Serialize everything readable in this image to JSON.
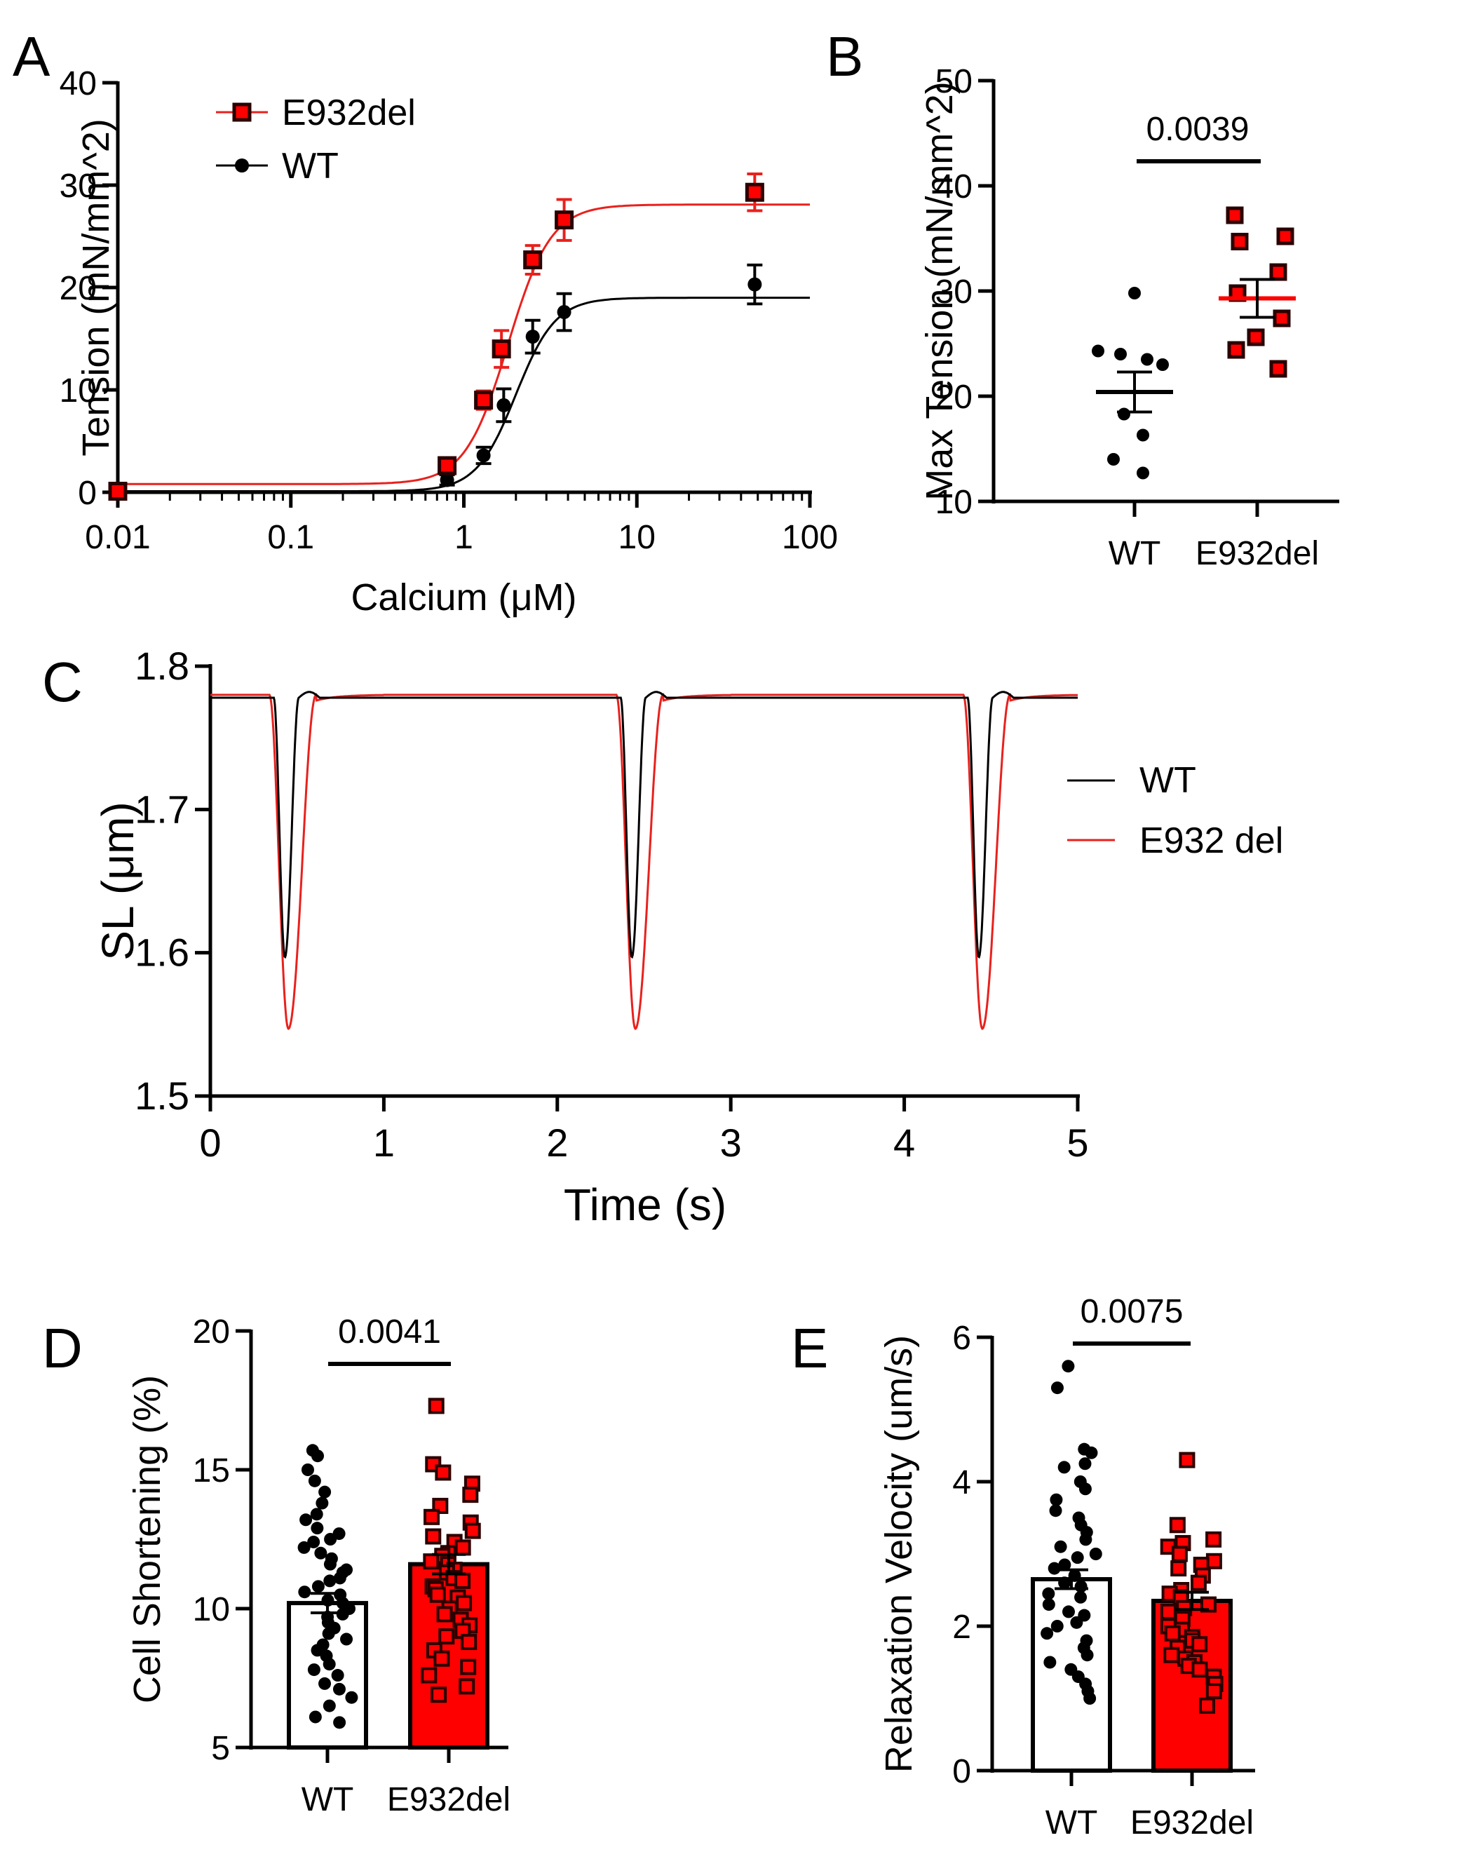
{
  "colors": {
    "wt": "#000000",
    "mut": "#e8211d",
    "mut_fill": "#ff0000"
  },
  "panels": {
    "A": {
      "letter": "A"
    },
    "B": {
      "letter": "B"
    },
    "C": {
      "letter": "C"
    },
    "D": {
      "letter": "D"
    },
    "E": {
      "letter": "E"
    }
  },
  "chart_data": [
    {
      "panel": "A",
      "type": "scatter",
      "xlabel": "Calcium (μM)",
      "ylabel": "Tension (mN/mm^2)",
      "xscale": "log",
      "xlim": [
        0.01,
        100
      ],
      "ylim": [
        0,
        40
      ],
      "xticks": [
        "0.01",
        "0.1",
        "1",
        "10",
        "100"
      ],
      "yticks": [
        "0",
        "10",
        "20",
        "30",
        "40"
      ],
      "legend": {
        "placement": "top-left",
        "entries": [
          "E932del",
          "WT"
        ]
      },
      "series": [
        {
          "name": "E932del",
          "marker": "square",
          "color": "#e8211d",
          "x": [
            0.01,
            0.8,
            1.3,
            1.65,
            2.5,
            3.8,
            48
          ],
          "y": [
            0.1,
            2.6,
            9.0,
            14.0,
            22.7,
            26.6,
            29.3
          ],
          "err": [
            0,
            0.7,
            0.9,
            1.8,
            1.4,
            2.0,
            1.8
          ],
          "fit": {
            "model": "hill",
            "bottom": 0.8,
            "top": 28.1,
            "ec50": 1.8,
            "n": 3.5
          }
        },
        {
          "name": "WT",
          "marker": "circle",
          "color": "#000000",
          "x": [
            0.01,
            0.8,
            1.3,
            1.7,
            2.5,
            3.8,
            48
          ],
          "y": [
            0.1,
            1.2,
            3.6,
            8.5,
            15.2,
            17.6,
            20.3
          ],
          "err": [
            0,
            0.5,
            0.8,
            1.6,
            1.6,
            1.8,
            1.9
          ],
          "fit": {
            "model": "hill",
            "bottom": 0.1,
            "top": 19.0,
            "ec50": 2.0,
            "n": 3.8
          }
        }
      ]
    },
    {
      "panel": "B",
      "type": "scatter",
      "ylabel": "Max Tension (mN/mm^2)",
      "categories": [
        "WT",
        "E932del"
      ],
      "ylim": [
        10,
        50
      ],
      "yticks": [
        "10",
        "20",
        "30",
        "40",
        "50"
      ],
      "annotation": "0.0039",
      "series": [
        {
          "name": "WT",
          "marker": "circle",
          "color": "#000000",
          "values": [
            29.8,
            24.3,
            24.0,
            23.5,
            23.0,
            18.3,
            16.3,
            14.0,
            12.7
          ],
          "mean": 20.4,
          "sem": 1.9
        },
        {
          "name": "E932del",
          "marker": "square",
          "color": "#e8211d",
          "values": [
            37.2,
            35.2,
            34.7,
            31.8,
            29.8,
            27.4,
            25.6,
            24.4,
            22.6
          ],
          "mean": 29.3,
          "sem": 1.8
        }
      ]
    },
    {
      "panel": "C",
      "type": "line",
      "xlabel": "Time (s)",
      "ylabel": "SL (μm)",
      "xlim": [
        0,
        5
      ],
      "ylim": [
        1.5,
        1.8
      ],
      "xticks": [
        "0",
        "1",
        "2",
        "3",
        "4",
        "5"
      ],
      "yticks": [
        "1.5",
        "1.6",
        "1.7",
        "1.8"
      ],
      "legend": {
        "placement": "right",
        "entries": [
          "WT",
          "E932 del"
        ]
      },
      "series": [
        {
          "name": "WT",
          "color": "#000000",
          "baseline": 1.778,
          "troughs": [
            {
              "t": 0.43,
              "min": 1.597
            },
            {
              "t": 2.43,
              "min": 1.597
            },
            {
              "t": 4.43,
              "min": 1.597
            }
          ]
        },
        {
          "name": "E932 del",
          "color": "#e8211d",
          "baseline": 1.78,
          "troughs": [
            {
              "t": 0.45,
              "min": 1.547
            },
            {
              "t": 2.45,
              "min": 1.547
            },
            {
              "t": 4.45,
              "min": 1.547
            }
          ]
        }
      ]
    },
    {
      "panel": "D",
      "type": "bar",
      "ylabel": "Cell Shortening (%)",
      "categories": [
        "WT",
        "E932del"
      ],
      "ylim": [
        5,
        20
      ],
      "yticks": [
        "5",
        "10",
        "15",
        "20"
      ],
      "annotation": "0.0041",
      "values": [
        10.2,
        11.6
      ],
      "sem": [
        0.35,
        0.35
      ],
      "points": {
        "WT": [
          15.7,
          15.5,
          15.0,
          14.6,
          14.2,
          13.8,
          13.4,
          13.2,
          12.9,
          12.7,
          12.5,
          12.4,
          12.2,
          12.0,
          11.8,
          11.6,
          11.4,
          11.3,
          11.1,
          11.0,
          10.8,
          10.6,
          10.5,
          10.3,
          10.2,
          10.0,
          9.8,
          9.7,
          9.5,
          9.3,
          9.1,
          8.9,
          8.7,
          8.5,
          8.3,
          8.0,
          7.8,
          7.6,
          7.3,
          7.1,
          6.8,
          6.5,
          6.1,
          5.9
        ],
        "E932del": [
          17.3,
          15.2,
          14.9,
          14.5,
          14.1,
          13.7,
          13.3,
          13.1,
          12.8,
          12.6,
          12.4,
          12.2,
          12.0,
          11.9,
          11.7,
          11.6,
          11.4,
          11.3,
          11.1,
          11.0,
          10.8,
          10.7,
          10.5,
          10.4,
          10.2,
          10.0,
          9.8,
          9.6,
          9.4,
          9.2,
          9.0,
          8.8,
          8.5,
          8.2,
          7.9,
          7.6,
          7.2,
          6.9
        ]
      }
    },
    {
      "panel": "E",
      "type": "bar",
      "ylabel": "Relaxation Velocity (um/s)",
      "categories": [
        "WT",
        "E932del"
      ],
      "ylim": [
        0,
        6
      ],
      "yticks": [
        "0",
        "2",
        "4",
        "6"
      ],
      "annotation": "0.0075",
      "values": [
        2.65,
        2.35
      ],
      "sem": [
        0.13,
        0.12
      ],
      "points": {
        "WT": [
          5.6,
          5.3,
          4.45,
          4.4,
          4.25,
          4.2,
          4.0,
          3.9,
          3.75,
          3.6,
          3.5,
          3.4,
          3.3,
          3.2,
          3.1,
          3.0,
          2.95,
          2.85,
          2.8,
          2.7,
          2.6,
          2.55,
          2.45,
          2.4,
          2.3,
          2.2,
          2.15,
          2.05,
          2.0,
          1.9,
          1.8,
          1.7,
          1.6,
          1.5,
          1.4,
          1.3,
          1.2,
          1.1,
          1.0
        ],
        "E932del": [
          4.3,
          3.4,
          3.2,
          3.15,
          3.1,
          3.0,
          2.9,
          2.85,
          2.8,
          2.7,
          2.6,
          2.5,
          2.45,
          2.4,
          2.3,
          2.25,
          2.2,
          2.1,
          2.0,
          1.95,
          1.9,
          1.85,
          1.8,
          1.75,
          1.7,
          1.6,
          1.55,
          1.5,
          1.45,
          1.4,
          1.3,
          1.2,
          1.1,
          0.9
        ]
      }
    }
  ]
}
